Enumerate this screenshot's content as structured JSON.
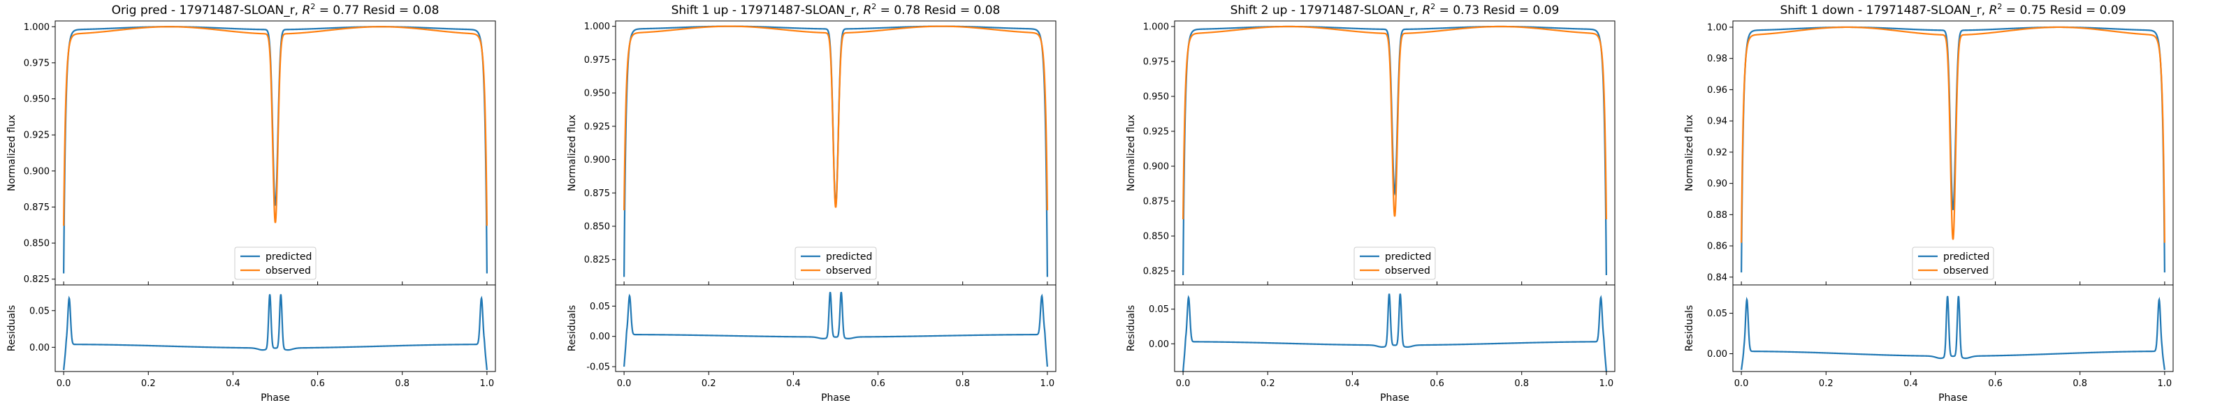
{
  "colors": {
    "predicted": "#1f77b4",
    "observed": "#ff7f0e"
  },
  "chart_data": [
    {
      "type": "line",
      "title": "Orig pred - 17971487-SLOAN_r, R² = 0.77 Resid = 0.08",
      "title_prefix": "Orig pred - 17971487-SLOAN_r, ",
      "r2": "0.77",
      "resid": "0.08",
      "xlabel": "Phase",
      "ylabel_top": "Normalized flux",
      "ylabel_bottom": "Residuals",
      "legend": [
        "predicted",
        "observed"
      ],
      "xlim": [
        -0.02,
        1.02
      ],
      "x_ticks": [
        "0.0",
        "0.2",
        "0.4",
        "0.6",
        "0.8",
        "1.0"
      ],
      "top": {
        "ylim": [
          0.821,
          1.004
        ],
        "y_ticks": [
          "0.825",
          "0.850",
          "0.875",
          "0.900",
          "0.925",
          "0.950",
          "0.975",
          "1.000"
        ],
        "predicted": {
          "edge": 0.829,
          "primary_min": 0.876,
          "plateau": 0.998,
          "peak": 1.0
        },
        "observed": {
          "edge": 0.862,
          "primary_min": 0.864,
          "plateau": 0.995,
          "peak": 1.0
        }
      },
      "bottom": {
        "ylim": [
          -0.033,
          0.085
        ],
        "y_ticks": [
          "0.00",
          "0.05"
        ],
        "edge_low": -0.031,
        "spike": 0.067,
        "inner_spike": 0.078,
        "base": 0.004,
        "mid": -0.001
      }
    },
    {
      "type": "line",
      "title": "Shift 1 up - 17971487-SLOAN_r, R² = 0.78 Resid = 0.08",
      "title_prefix": "Shift 1 up - 17971487-SLOAN_r, ",
      "r2": "0.78",
      "resid": "0.08",
      "xlabel": "Phase",
      "ylabel_top": "Normalized flux",
      "ylabel_bottom": "Residuals",
      "legend": [
        "predicted",
        "observed"
      ],
      "xlim": [
        -0.02,
        1.02
      ],
      "x_ticks": [
        "0.0",
        "0.2",
        "0.4",
        "0.6",
        "0.8",
        "1.0"
      ],
      "top": {
        "ylim": [
          0.806,
          1.004
        ],
        "y_ticks": [
          "0.825",
          "0.850",
          "0.875",
          "0.900",
          "0.925",
          "0.950",
          "0.975",
          "1.000"
        ],
        "predicted": {
          "edge": 0.812,
          "primary_min": 0.866,
          "plateau": 0.998,
          "peak": 1.0
        },
        "observed": {
          "edge": 0.862,
          "primary_min": 0.864,
          "plateau": 0.995,
          "peak": 1.0
        }
      },
      "bottom": {
        "ylim": [
          -0.058,
          0.085
        ],
        "y_ticks": [
          "-0.05",
          "0.00",
          "0.05"
        ],
        "edge_low": -0.05,
        "spike": 0.067,
        "inner_spike": 0.078,
        "base": 0.003,
        "mid": -0.001
      }
    },
    {
      "type": "line",
      "title": "Shift 2 up - 17971487-SLOAN_r, R² = 0.73 Resid = 0.09",
      "title_prefix": "Shift 2 up - 17971487-SLOAN_r, ",
      "r2": "0.73",
      "resid": "0.09",
      "xlabel": "Phase",
      "ylabel_top": "Normalized flux",
      "ylabel_bottom": "Residuals",
      "legend": [
        "predicted",
        "observed"
      ],
      "xlim": [
        -0.02,
        1.02
      ],
      "x_ticks": [
        "0.0",
        "0.2",
        "0.4",
        "0.6",
        "0.8",
        "1.0"
      ],
      "top": {
        "ylim": [
          0.815,
          1.004
        ],
        "y_ticks": [
          "0.825",
          "0.850",
          "0.875",
          "0.900",
          "0.925",
          "0.950",
          "0.975",
          "1.000"
        ],
        "predicted": {
          "edge": 0.822,
          "primary_min": 0.881,
          "plateau": 0.998,
          "peak": 1.0
        },
        "observed": {
          "edge": 0.862,
          "primary_min": 0.864,
          "plateau": 0.995,
          "peak": 1.0
        }
      },
      "bottom": {
        "ylim": [
          -0.04,
          0.085
        ],
        "y_ticks": [
          "0.00",
          "0.05"
        ],
        "edge_low": -0.04,
        "spike": 0.067,
        "inner_spike": 0.078,
        "base": 0.003,
        "mid": -0.002
      }
    },
    {
      "type": "line",
      "title": "Shift 1 down - 17971487-SLOAN_r, R² = 0.75 Resid = 0.09",
      "title_prefix": "Shift 1 down - 17971487-SLOAN_r, ",
      "r2": "0.75",
      "resid": "0.09",
      "xlabel": "Phase",
      "ylabel_top": "Normalized flux",
      "ylabel_bottom": "Residuals",
      "legend": [
        "predicted",
        "observed"
      ],
      "xlim": [
        -0.02,
        1.02
      ],
      "x_ticks": [
        "0.0",
        "0.2",
        "0.4",
        "0.6",
        "0.8",
        "1.0"
      ],
      "top": {
        "ylim": [
          0.835,
          1.004
        ],
        "y_ticks": [
          "0.84",
          "0.86",
          "0.88",
          "0.90",
          "0.92",
          "0.94",
          "0.96",
          "0.98",
          "1.00"
        ],
        "predicted": {
          "edge": 0.843,
          "primary_min": 0.883,
          "plateau": 0.998,
          "peak": 1.0
        },
        "observed": {
          "edge": 0.862,
          "primary_min": 0.864,
          "plateau": 0.995,
          "peak": 1.0
        }
      },
      "bottom": {
        "ylim": [
          -0.022,
          0.085
        ],
        "y_ticks": [
          "0.00",
          "0.05"
        ],
        "edge_low": -0.02,
        "spike": 0.067,
        "inner_spike": 0.078,
        "base": 0.003,
        "mid": -0.003
      }
    }
  ]
}
